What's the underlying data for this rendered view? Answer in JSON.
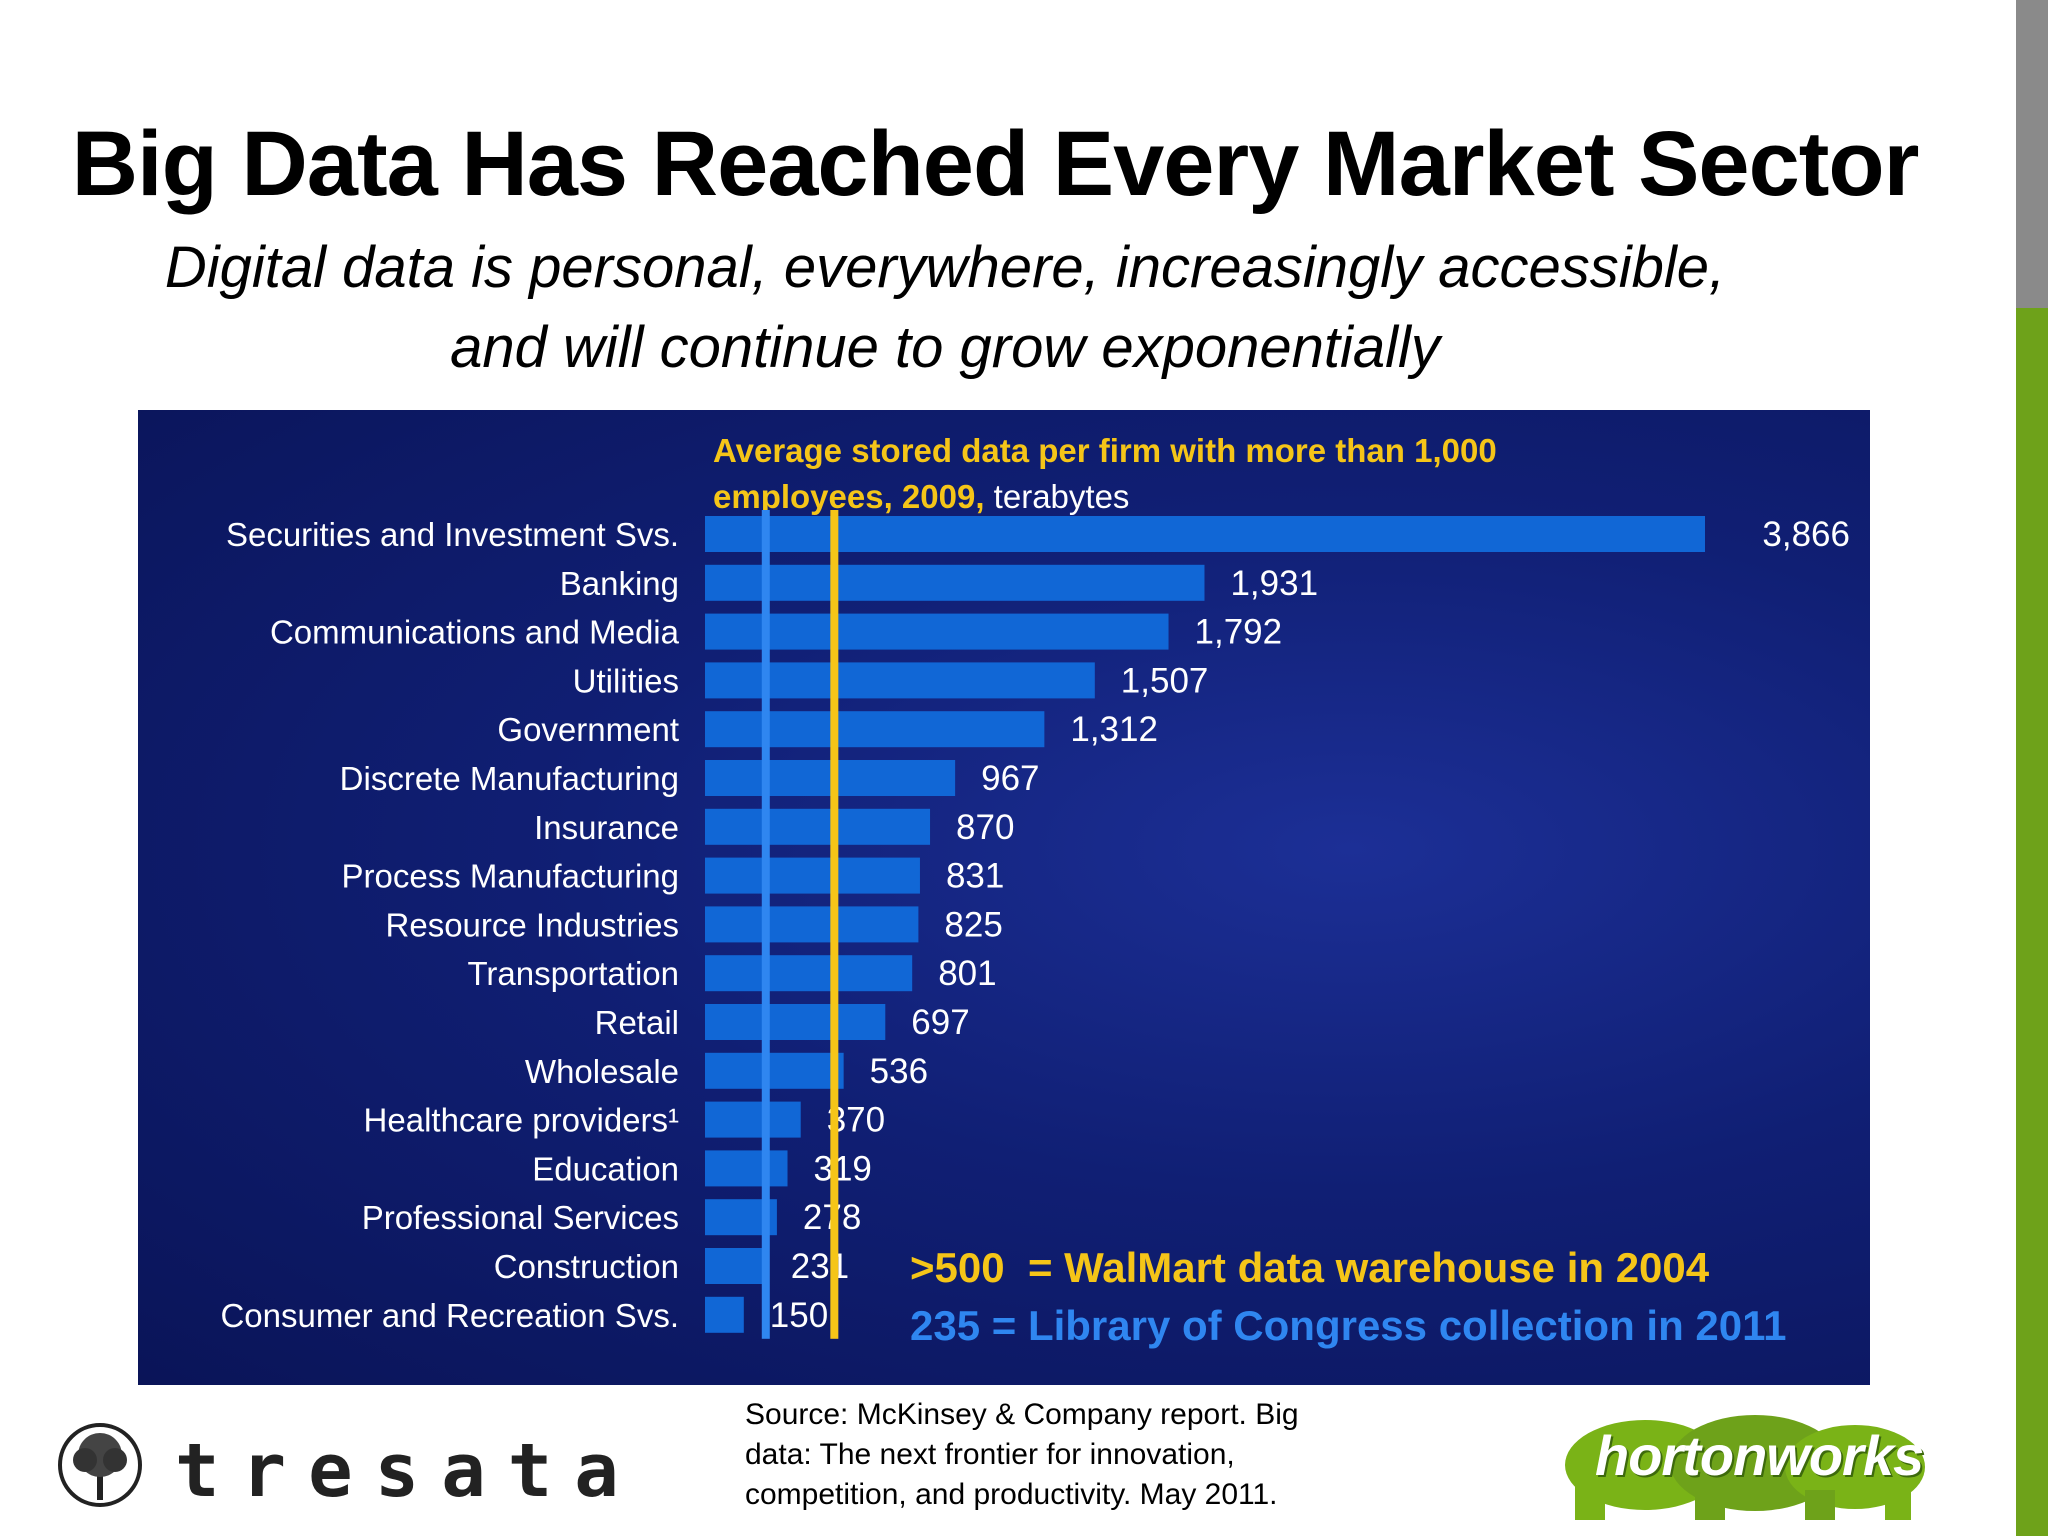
{
  "slide": {
    "title": "Big Data Has Reached Every Market Sector",
    "subtitle_line1": "Digital data is personal, everywhere, increasingly accessible,",
    "subtitle_line2": "and will continue to grow exponentially",
    "source": "Source:  McKinsey & Company report. Big data: The next frontier for innovation, competition, and productivity. May 2011.",
    "logo_left": "tresata",
    "logo_right": "hortonworks",
    "colors": {
      "accent_green": "#6ea21a",
      "bar_blue": "#1167d6",
      "title_yellow": "#f5c518",
      "ref_blue": "#2f86f0"
    }
  },
  "chart_data": {
    "type": "bar",
    "orientation": "horizontal",
    "title_yellow": "Average stored data per firm with more than 1,000",
    "title_yellow_2": "employees, 2009,",
    "title_unit": " terabytes",
    "categories": [
      "Securities and Investment Svs.",
      "Banking",
      "Communications and Media",
      "Utilities",
      "Government",
      "Discrete Manufacturing",
      "Insurance",
      "Process Manufacturing",
      "Resource Industries",
      "Transportation",
      "Retail",
      "Wholesale",
      "Healthcare providers¹",
      "Education",
      "Professional Services",
      "Construction",
      "Consumer and Recreation Svs."
    ],
    "values": [
      3866,
      1931,
      1792,
      1507,
      1312,
      967,
      870,
      831,
      825,
      801,
      697,
      536,
      370,
      319,
      278,
      231,
      150
    ],
    "value_labels": [
      "3,866",
      "1,931",
      "1,792",
      "1,507",
      "1,312",
      "967",
      "870",
      "831",
      "825",
      "801",
      "697",
      "536",
      "370",
      "319",
      "278",
      "231",
      "150"
    ],
    "reference_lines": [
      {
        "value": 500,
        "color": "#f5c518",
        "label": ">500  = WalMart data warehouse in 2004"
      },
      {
        "value": 235,
        "color": "#2f86f0",
        "label": "235 = Library of Congress collection in 2011"
      }
    ],
    "legend_placement": "bottom-right"
  }
}
